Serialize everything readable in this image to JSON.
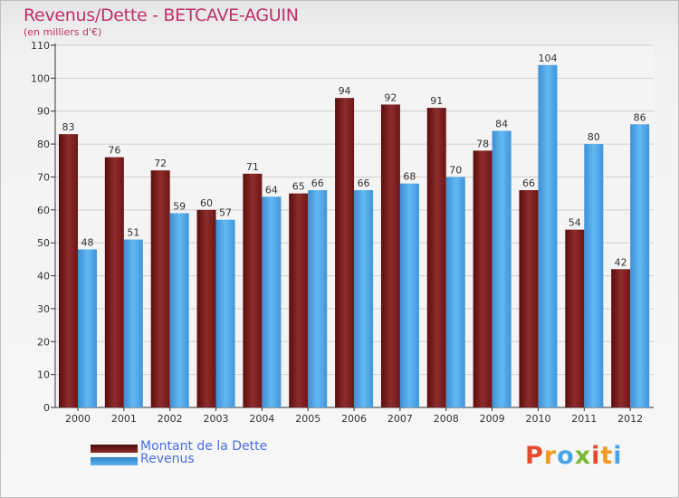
{
  "chart_data": {
    "type": "bar",
    "title": "Revenus/Dette - BETCAVE-AGUIN",
    "subtitle": "(en milliers d'€)",
    "categories": [
      "2000",
      "2001",
      "2002",
      "2003",
      "2004",
      "2005",
      "2006",
      "2007",
      "2008",
      "2009",
      "2010",
      "2011",
      "2012"
    ],
    "series": [
      {
        "name": "Montant de la Dette",
        "color": "#7a1c1c",
        "values": [
          83,
          76,
          72,
          60,
          71,
          65,
          94,
          92,
          91,
          78,
          66,
          54,
          42
        ]
      },
      {
        "name": "Revenus",
        "color": "#4aa3e8",
        "values": [
          48,
          51,
          59,
          57,
          64,
          66,
          66,
          68,
          70,
          84,
          104,
          80,
          86
        ]
      }
    ],
    "ylim": [
      0,
      110
    ],
    "yticks": [
      0,
      10,
      20,
      30,
      40,
      50,
      60,
      70,
      80,
      90,
      100,
      110
    ],
    "grid": true,
    "legend_position": "bottom-left"
  },
  "legend": {
    "debt_label": "Montant de la Dette",
    "revenue_label": "Revenus"
  },
  "logo": {
    "letters": [
      "P",
      "r",
      "o",
      "x",
      "i",
      "t",
      "i"
    ],
    "colors": [
      "#e8492c",
      "#f19a24",
      "#4aa3e8",
      "#7ab83a",
      "#e8492c",
      "#f19a24",
      "#4aa3e8"
    ]
  }
}
